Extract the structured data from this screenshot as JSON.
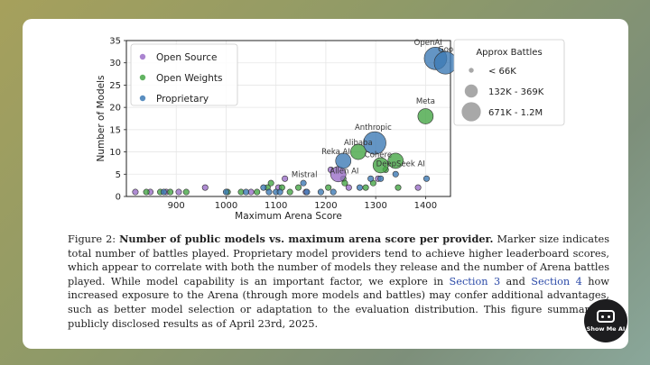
{
  "chart_data": {
    "type": "scatter",
    "xlabel": "Maximum Arena Score",
    "ylabel": "Number of Models",
    "xlim": [
      800,
      1450
    ],
    "ylim": [
      0,
      35
    ],
    "xticks": [
      900,
      1000,
      1100,
      1200,
      1300,
      1400
    ],
    "yticks": [
      0,
      5,
      10,
      15,
      20,
      25,
      30,
      35
    ],
    "grid": true,
    "legend_position": "top-left",
    "series": [
      {
        "name": "Open Source",
        "color": "#9b6fc8",
        "points": [
          {
            "x": 818,
            "y": 1,
            "size": "<66K"
          },
          {
            "x": 848,
            "y": 1,
            "size": "<66K"
          },
          {
            "x": 880,
            "y": 1,
            "size": "<66K"
          },
          {
            "x": 905,
            "y": 1,
            "size": "<66K"
          },
          {
            "x": 958,
            "y": 2,
            "size": "<66K"
          },
          {
            "x": 1050,
            "y": 1,
            "size": "<66K"
          },
          {
            "x": 1105,
            "y": 2,
            "size": "<66K"
          },
          {
            "x": 1118,
            "y": 4,
            "size": "<66K"
          },
          {
            "x": 1160,
            "y": 1,
            "size": "<66K"
          },
          {
            "x": 1210,
            "y": 6,
            "size": "<66K"
          },
          {
            "x": 1225,
            "y": 5,
            "size": "132K-369K"
          },
          {
            "x": 1246,
            "y": 2,
            "size": "<66K"
          },
          {
            "x": 1305,
            "y": 4,
            "size": "<66K"
          },
          {
            "x": 1385,
            "y": 2,
            "size": "<66K"
          }
        ]
      },
      {
        "name": "Open Weights",
        "color": "#46a646",
        "points": [
          {
            "x": 840,
            "y": 1,
            "size": "<66K"
          },
          {
            "x": 868,
            "y": 1,
            "size": "<66K"
          },
          {
            "x": 888,
            "y": 1,
            "size": "<66K"
          },
          {
            "x": 920,
            "y": 1,
            "size": "<66K"
          },
          {
            "x": 1003,
            "y": 1,
            "size": "<66K"
          },
          {
            "x": 1030,
            "y": 1,
            "size": "<66K"
          },
          {
            "x": 1062,
            "y": 1,
            "size": "<66K"
          },
          {
            "x": 1083,
            "y": 2,
            "size": "<66K"
          },
          {
            "x": 1090,
            "y": 3,
            "size": "<66K"
          },
          {
            "x": 1112,
            "y": 2,
            "size": "<66K"
          },
          {
            "x": 1128,
            "y": 1,
            "size": "<66K"
          },
          {
            "x": 1145,
            "y": 2,
            "size": "<66K"
          },
          {
            "x": 1205,
            "y": 2,
            "size": "<66K"
          },
          {
            "x": 1235,
            "y": 4,
            "size": "<66K"
          },
          {
            "x": 1238,
            "y": 3,
            "size": "<66K"
          },
          {
            "x": 1265,
            "y": 10,
            "size": "132K-369K"
          },
          {
            "x": 1280,
            "y": 2,
            "size": "<66K"
          },
          {
            "x": 1295,
            "y": 3,
            "size": "<66K"
          },
          {
            "x": 1310,
            "y": 7,
            "size": "132K-369K"
          },
          {
            "x": 1320,
            "y": 6,
            "size": "<66K"
          },
          {
            "x": 1340,
            "y": 8,
            "size": "132K-369K"
          },
          {
            "x": 1345,
            "y": 2,
            "size": "<66K"
          },
          {
            "x": 1400,
            "y": 18,
            "size": "132K-369K"
          }
        ]
      },
      {
        "name": "Proprietary",
        "color": "#3d7ab5",
        "points": [
          {
            "x": 875,
            "y": 1,
            "size": "<66K"
          },
          {
            "x": 1000,
            "y": 1,
            "size": "<66K"
          },
          {
            "x": 1040,
            "y": 1,
            "size": "<66K"
          },
          {
            "x": 1075,
            "y": 2,
            "size": "<66K"
          },
          {
            "x": 1086,
            "y": 1,
            "size": "<66K"
          },
          {
            "x": 1100,
            "y": 1,
            "size": "<66K"
          },
          {
            "x": 1108,
            "y": 1,
            "size": "<66K"
          },
          {
            "x": 1155,
            "y": 3,
            "size": "<66K"
          },
          {
            "x": 1162,
            "y": 1,
            "size": "<66K"
          },
          {
            "x": 1190,
            "y": 1,
            "size": "<66K"
          },
          {
            "x": 1215,
            "y": 1,
            "size": "<66K"
          },
          {
            "x": 1235,
            "y": 8,
            "size": "132K-369K"
          },
          {
            "x": 1268,
            "y": 2,
            "size": "<66K"
          },
          {
            "x": 1290,
            "y": 4,
            "size": "<66K"
          },
          {
            "x": 1298,
            "y": 12,
            "size": "671K-1.2M"
          },
          {
            "x": 1310,
            "y": 4,
            "size": "<66K"
          },
          {
            "x": 1340,
            "y": 5,
            "size": "<66K"
          },
          {
            "x": 1402,
            "y": 4,
            "size": "<66K"
          },
          {
            "x": 1420,
            "y": 31,
            "size": "671K-1.2M"
          },
          {
            "x": 1440,
            "y": 30,
            "size": "671K-1.2M"
          }
        ]
      }
    ],
    "annotations": [
      {
        "text": "OpenAI",
        "x": 1405,
        "y": 34
      },
      {
        "text": "Google",
        "x": 1452,
        "y": 32.5
      },
      {
        "text": "Meta",
        "x": 1400,
        "y": 20.8
      },
      {
        "text": "Anthropic",
        "x": 1295,
        "y": 15
      },
      {
        "text": "Alibaba",
        "x": 1265,
        "y": 11.5
      },
      {
        "text": "Reka AI",
        "x": 1220,
        "y": 9.5
      },
      {
        "text": "Cohere",
        "x": 1305,
        "y": 8.8
      },
      {
        "text": "DeepSeek AI",
        "x": 1350,
        "y": 6.8
      },
      {
        "text": "Allen AI",
        "x": 1237,
        "y": 5.2
      },
      {
        "text": "Mistral",
        "x": 1157,
        "y": 4.4
      }
    ],
    "size_legend": {
      "title": "Approx Battles",
      "items": [
        {
          "label": "< 66K",
          "key": "<66K"
        },
        {
          "label": "132K - 369K",
          "key": "132K-369K"
        },
        {
          "label": "671K - 1.2M",
          "key": "671K-1.2M"
        }
      ]
    }
  },
  "caption": {
    "figure_label": "Figure 2: ",
    "title": "Number of public models vs.  maximum arena score per provider.",
    "text_1": " Marker size indicates total number of battles played. Proprietary model providers tend to achieve higher leaderboard scores, which appear to correlate with both the number of models they release and the number of Arena battles played. While model capability is an important factor, we explore in ",
    "ref_1": "Section 3",
    "text_2": " and ",
    "ref_2": "Section 4",
    "text_3": " how increased exposure to the Arena (through more models and battles) may confer additional advantages, such as better model selection or adaptation to the evaluation distribution. This figure summarizes publicly disclosed results as of April 23rd, 2025."
  },
  "logo": {
    "text": "Show Me AI",
    "icon": "robot-face-icon"
  }
}
